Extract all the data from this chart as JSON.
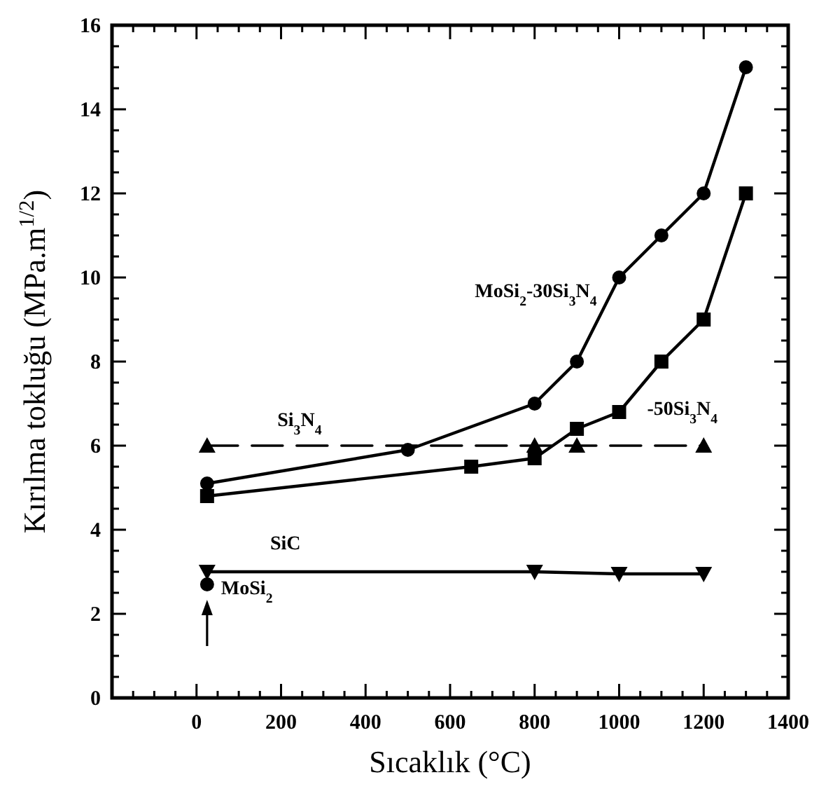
{
  "chart_data": {
    "type": "line",
    "xlabel": "Sıcaklık (°C)",
    "ylabel": "Kırılma tokluğu (MPa.m$^{1/2}$)",
    "xlim": [
      -200,
      1400
    ],
    "ylim": [
      0,
      16
    ],
    "xticks": [
      {
        "value": -150,
        "label": null
      },
      {
        "value": -100,
        "label": null
      },
      {
        "value": -50,
        "label": null
      },
      0,
      {
        "value": 50,
        "label": null
      },
      {
        "value": 100,
        "label": null
      },
      {
        "value": 150,
        "label": null
      },
      200,
      {
        "value": 250,
        "label": null
      },
      {
        "value": 300,
        "label": null
      },
      {
        "value": 350,
        "label": null
      },
      400,
      {
        "value": 450,
        "label": null
      },
      {
        "value": 500,
        "label": null
      },
      {
        "value": 550,
        "label": null
      },
      600,
      {
        "value": 650,
        "label": null
      },
      {
        "value": 700,
        "label": null
      },
      {
        "value": 750,
        "label": null
      },
      800,
      {
        "value": 850,
        "label": null
      },
      {
        "value": 900,
        "label": null
      },
      {
        "value": 950,
        "label": null
      },
      1000,
      {
        "value": 1050,
        "label": null
      },
      {
        "value": 1100,
        "label": null
      },
      {
        "value": 1150,
        "label": null
      },
      1200,
      {
        "value": 1250,
        "label": null
      },
      {
        "value": 1300,
        "label": null
      },
      {
        "value": 1350,
        "label": null
      },
      1400
    ],
    "yticks": [
      0,
      {
        "value": 0.5,
        "label": null
      },
      {
        "value": 1,
        "label": null
      },
      {
        "value": 1.5,
        "label": null
      },
      2,
      {
        "value": 2.5,
        "label": null
      },
      {
        "value": 3,
        "label": null
      },
      {
        "value": 3.5,
        "label": null
      },
      4,
      {
        "value": 4.5,
        "label": null
      },
      {
        "value": 5,
        "label": null
      },
      {
        "value": 5.5,
        "label": null
      },
      6,
      {
        "value": 6.5,
        "label": null
      },
      {
        "value": 7,
        "label": null
      },
      {
        "value": 7.5,
        "label": null
      },
      8,
      {
        "value": 8.5,
        "label": null
      },
      {
        "value": 9,
        "label": null
      },
      {
        "value": 9.5,
        "label": null
      },
      10,
      {
        "value": 10.5,
        "label": null
      },
      {
        "value": 11,
        "label": null
      },
      {
        "value": 11.5,
        "label": null
      },
      12,
      {
        "value": 12.5,
        "label": null
      },
      {
        "value": 13,
        "label": null
      },
      {
        "value": 13.5,
        "label": null
      },
      14,
      {
        "value": 14.5,
        "label": null
      },
      {
        "value": 15,
        "label": null
      },
      {
        "value": 15.5,
        "label": null
      },
      16
    ],
    "grid": false,
    "series": [
      {
        "name": "MoSi$_{2}$-30Si$_{3}$N$_{4}$",
        "color": "#000000",
        "marker": "circle",
        "line_style": "solid",
        "x": [
          25,
          500,
          800,
          900,
          1000,
          1100,
          1200,
          1300
        ],
        "values": [
          5.1,
          5.9,
          7,
          8,
          10,
          11,
          12,
          15
        ]
      },
      {
        "name": "-50Si$_{3}$N$_{4}$",
        "color": "#000000",
        "marker": "square",
        "line_style": "solid",
        "x": [
          25,
          650,
          800,
          900,
          1000,
          1100,
          1200,
          1300
        ],
        "values": [
          4.8,
          5.5,
          5.7,
          6.4,
          6.8,
          8,
          9,
          12
        ]
      },
      {
        "name": "Si$_{3}$N$_{4}$",
        "color": "#000000",
        "marker": "triangle",
        "line_style": "dashed",
        "x": [
          25,
          800,
          900,
          1200
        ],
        "values": [
          6,
          6,
          6,
          6
        ]
      },
      {
        "name": "SiC",
        "color": "#000000",
        "marker": "triangle-down",
        "line_style": "solid",
        "x": [
          25,
          800,
          1000,
          1200
        ],
        "values": [
          3,
          3,
          2.95,
          2.95
        ]
      },
      {
        "name": "MoSi$_{2}$",
        "color": "#000000",
        "marker": "circle",
        "line_style": "none",
        "x": [
          25
        ],
        "values": [
          2.7
        ]
      }
    ]
  }
}
